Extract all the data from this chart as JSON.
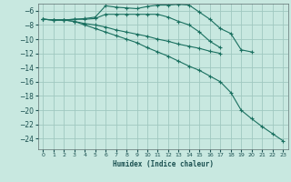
{
  "background_color": "#c8e8e0",
  "grid_color": "#a0c8c0",
  "line_color": "#1a7060",
  "xlabel": "Humidex (Indice chaleur)",
  "xlim": [
    -0.5,
    23.5
  ],
  "ylim": [
    -25.5,
    -5.0
  ],
  "yticks": [
    -6,
    -8,
    -10,
    -12,
    -14,
    -16,
    -18,
    -20,
    -22,
    -24
  ],
  "xticks": [
    0,
    1,
    2,
    3,
    4,
    5,
    6,
    7,
    8,
    9,
    10,
    11,
    12,
    13,
    14,
    15,
    16,
    17,
    18,
    19,
    20,
    21,
    22,
    23
  ],
  "lines": [
    {
      "x": [
        0,
        1,
        2,
        3,
        4,
        5,
        6,
        7,
        8,
        9,
        10,
        11,
        12,
        13,
        14,
        15,
        16,
        17,
        18,
        19,
        20
      ],
      "y": [
        -7.2,
        -7.3,
        -7.3,
        -7.2,
        -7.1,
        -6.9,
        -5.3,
        -5.5,
        -5.6,
        -5.7,
        -5.4,
        -5.2,
        -5.2,
        -5.1,
        -5.2,
        -6.2,
        -7.2,
        -8.5,
        -9.2,
        -11.5,
        -11.8
      ]
    },
    {
      "x": [
        0,
        1,
        2,
        3,
        4,
        5,
        6,
        7,
        8,
        9,
        10,
        11,
        12,
        13,
        14,
        15,
        16,
        17
      ],
      "y": [
        -7.2,
        -7.3,
        -7.3,
        -7.2,
        -7.2,
        -7.1,
        -6.5,
        -6.5,
        -6.5,
        -6.5,
        -6.5,
        -6.5,
        -6.9,
        -7.5,
        -8.0,
        -9.0,
        -10.3,
        -11.2
      ]
    },
    {
      "x": [
        0,
        1,
        2,
        3,
        4,
        5,
        6,
        7,
        8,
        9,
        10,
        11,
        12,
        13,
        14,
        15,
        16,
        17
      ],
      "y": [
        -7.2,
        -7.3,
        -7.3,
        -7.5,
        -7.8,
        -8.0,
        -8.3,
        -8.7,
        -9.0,
        -9.3,
        -9.6,
        -10.0,
        -10.3,
        -10.7,
        -11.0,
        -11.3,
        -11.7,
        -12.0
      ]
    },
    {
      "x": [
        0,
        1,
        2,
        3,
        4,
        5,
        6,
        7,
        8,
        9,
        10,
        11,
        12,
        13,
        14,
        15,
        16,
        17,
        18,
        19,
        20,
        21,
        22,
        23
      ],
      "y": [
        -7.2,
        -7.3,
        -7.3,
        -7.5,
        -8.0,
        -8.5,
        -9.0,
        -9.5,
        -10.0,
        -10.5,
        -11.2,
        -11.8,
        -12.4,
        -13.1,
        -13.8,
        -14.4,
        -15.2,
        -16.0,
        -17.5,
        -20.0,
        -21.2,
        -22.3,
        -23.3,
        -24.3
      ]
    }
  ]
}
